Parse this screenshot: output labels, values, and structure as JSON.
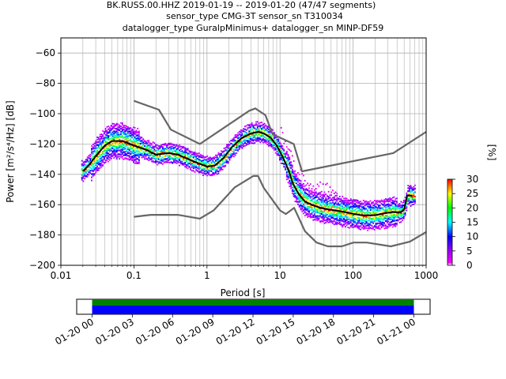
{
  "chart_data": [
    {
      "type": "heatmap",
      "subtype": "probabilistic-power-spectral-density",
      "title_lines": [
        "BK.RUSS.00.HHZ   2019-01-19 -- 2019-01-20  (47/47 segments)",
        "sensor_type CMG-3T sensor_sn T310034",
        "datalogger_type GuralpMinimus+ datalogger_sn MINP-DF59"
      ],
      "xlabel": "Period [s]",
      "ylabel": "Power [m²/s⁴/Hz] [dB]",
      "xscale": "log",
      "xlim": [
        0.01,
        1000
      ],
      "ylim": [
        -200,
        -50
      ],
      "xticks": [
        0.01,
        0.1,
        1,
        10,
        100,
        1000
      ],
      "xtick_labels": [
        "0.01",
        "0.1",
        "1",
        "10",
        "100",
        "1000"
      ],
      "yticks": [
        -200,
        -180,
        -160,
        -140,
        -120,
        -100,
        -80,
        -60
      ],
      "ytick_labels": [
        "−200",
        "−180",
        "−160",
        "−140",
        "−120",
        "−100",
        "−80",
        "−60"
      ],
      "grid": true,
      "colorbar": {
        "label": "[%]",
        "range": [
          0,
          30
        ],
        "ticks": [
          0,
          5,
          10,
          15,
          20,
          25,
          30
        ],
        "tick_labels": [
          "0",
          "5",
          "10",
          "15",
          "20",
          "25",
          "30"
        ],
        "colors": [
          "#ffffff",
          "#ff00ff",
          "#0000ff",
          "#00ffff",
          "#00ff00",
          "#ffff00",
          "#ff0000"
        ]
      },
      "series": [
        {
          "role": "mean",
          "color": "#000000",
          "x": [
            0.02,
            0.025,
            0.03,
            0.04,
            0.05,
            0.07,
            0.1,
            0.15,
            0.2,
            0.3,
            0.4,
            0.5,
            0.7,
            0.9,
            1.0,
            1.3,
            1.7,
            2.2,
            3.0,
            4.0,
            5.0,
            6.0,
            7.5,
            9.0,
            11,
            13,
            15,
            18,
            22,
            27,
            35,
            45,
            60,
            80,
            100,
            130,
            160,
            200,
            250,
            330,
            450,
            500,
            550,
            650
          ],
          "y": [
            -138,
            -133,
            -128,
            -121,
            -118,
            -118,
            -121,
            -124,
            -127,
            -126,
            -127,
            -129,
            -132,
            -134,
            -135,
            -134,
            -129,
            -122,
            -116,
            -113,
            -112,
            -113,
            -116,
            -121,
            -129,
            -137,
            -146,
            -153,
            -158,
            -160,
            -162,
            -163,
            -164,
            -165,
            -166,
            -167,
            -167,
            -167,
            -166,
            -165,
            -165,
            -163,
            -154,
            -154
          ]
        },
        {
          "role": "noise-model-high",
          "color": "#666666",
          "x": [
            0.1,
            0.22,
            0.32,
            0.8,
            3.8,
            4.6,
            6.3,
            7.9,
            15.4,
            20,
            354.8,
            1000
          ],
          "y": [
            -91.5,
            -97.4,
            -110.5,
            -120,
            -98,
            -96.5,
            -101,
            -113.5,
            -120,
            -138,
            -126,
            -112
          ]
        },
        {
          "role": "noise-model-low",
          "color": "#666666",
          "x": [
            0.1,
            0.17,
            0.4,
            0.8,
            1.24,
            2.4,
            4.3,
            5.0,
            6.0,
            10.0,
            12.0,
            15.6,
            21.9,
            31.6,
            45.0,
            70.0,
            101.0,
            154.0,
            328.0,
            600.0,
            1000.0
          ],
          "y": [
            -168,
            -166.7,
            -166.7,
            -169.2,
            -163.7,
            -148.6,
            -141.1,
            -141.1,
            -149.0,
            -163.8,
            -166.2,
            -162.1,
            -177.5,
            -185.0,
            -187.5,
            -187.5,
            -185.0,
            -185.0,
            -187.5,
            -184.4,
            -178
          ]
        }
      ]
    },
    {
      "type": "timeline",
      "xtick_labels": [
        "01-20 00",
        "01-20 03",
        "01-20 06",
        "01-20 09",
        "01-20 12",
        "01-20 15",
        "01-20 18",
        "01-20 21",
        "01-21 00"
      ],
      "xlim": [
        "01-19 22:30",
        "01-21 01:15"
      ],
      "covered_interval": [
        "01-20 00",
        "01-21 00"
      ],
      "bars": [
        {
          "role": "data-availability",
          "color": "#008000"
        },
        {
          "role": "processed-segments",
          "color": "#0000ff"
        }
      ]
    }
  ]
}
